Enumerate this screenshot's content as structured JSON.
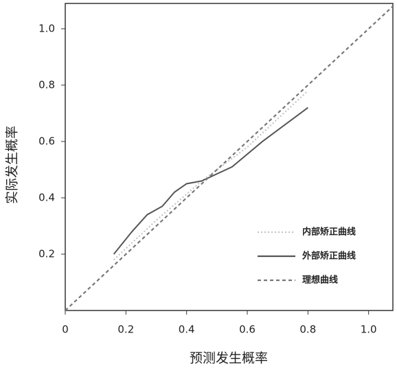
{
  "chart_data": {
    "type": "line",
    "x_label": "预测发生概率",
    "y_label": "实际发生概率",
    "xlim": [
      0,
      1.08
    ],
    "ylim": [
      0,
      1.09
    ],
    "xticks": [
      0,
      0.2,
      0.4,
      0.6,
      0.8,
      {
        "value": 1,
        "label": "1.0"
      }
    ],
    "yticks": [
      0.2,
      0.4,
      0.6,
      0.8,
      {
        "value": 1,
        "label": "1.0"
      }
    ],
    "legend": "lower right",
    "series": [
      {
        "name": "内部矫正曲线",
        "color": "#c4c4c4",
        "style": "dotted",
        "x": [
          0.16,
          0.3,
          0.45,
          0.6,
          0.8
        ],
        "values": [
          0.18,
          0.32,
          0.46,
          0.58,
          0.78
        ]
      },
      {
        "name": "外部矫正曲线",
        "color": "#555555",
        "style": "solid",
        "x": [
          0.16,
          0.22,
          0.27,
          0.32,
          0.36,
          0.4,
          0.45,
          0.55,
          0.65,
          0.8
        ],
        "values": [
          0.2,
          0.28,
          0.34,
          0.37,
          0.42,
          0.45,
          0.46,
          0.51,
          0.6,
          0.72
        ]
      },
      {
        "name": "理想曲线",
        "color": "#777777",
        "style": "dashed",
        "x": [
          0,
          1.08
        ],
        "values": [
          0,
          1.08
        ]
      }
    ]
  }
}
